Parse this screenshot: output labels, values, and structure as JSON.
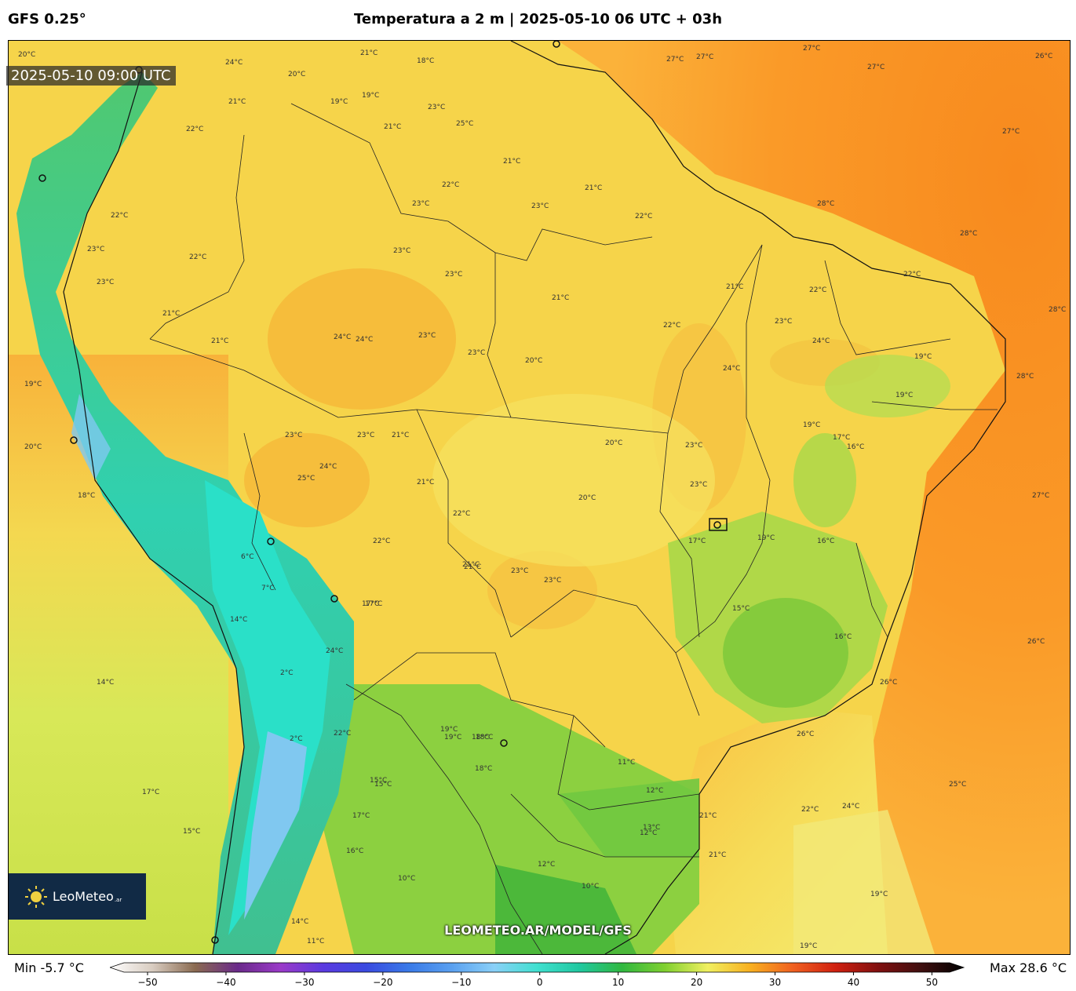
{
  "header": {
    "model": "GFS 0.25°",
    "title": "Temperatura a 2 m | 2025-05-10 06 UTC + 03h"
  },
  "map": {
    "valid_time": "2025-05-10 09:00 UTC",
    "watermark": "LEOMETEO.AR/MODEL/GFS",
    "logo": {
      "text": "LeoMeteo",
      "suffix": ".ar"
    },
    "contour_labels": [
      {
        "text": "27°C"
      },
      {
        "text": "27°C"
      },
      {
        "text": "27°C"
      },
      {
        "text": "26°C"
      },
      {
        "text": "27°C"
      },
      {
        "text": "27°C"
      },
      {
        "text": "28°C"
      },
      {
        "text": "28°C"
      },
      {
        "text": "28°C"
      },
      {
        "text": "28°C"
      },
      {
        "text": "27°C"
      },
      {
        "text": "26°C"
      },
      {
        "text": "26°C"
      },
      {
        "text": "26°C"
      },
      {
        "text": "25°C"
      },
      {
        "text": "24°C"
      },
      {
        "text": "22°C"
      },
      {
        "text": "19°C"
      },
      {
        "text": "19°C"
      },
      {
        "text": "21°C"
      },
      {
        "text": "22°C"
      },
      {
        "text": "23°C"
      },
      {
        "text": "24°C"
      },
      {
        "text": "22°C"
      },
      {
        "text": "21°C"
      },
      {
        "text": "19°C"
      },
      {
        "text": "19°C"
      },
      {
        "text": "17°C"
      },
      {
        "text": "16°C"
      },
      {
        "text": "19°C"
      },
      {
        "text": "16°C"
      },
      {
        "text": "15°C"
      },
      {
        "text": "16°C"
      },
      {
        "text": "17°C"
      },
      {
        "text": "19°C"
      },
      {
        "text": "23°C"
      },
      {
        "text": "24°C"
      },
      {
        "text": "22°C"
      },
      {
        "text": "21°C"
      },
      {
        "text": "22°C"
      },
      {
        "text": "21°C"
      },
      {
        "text": "21°C"
      },
      {
        "text": "23°C"
      },
      {
        "text": "20°C"
      },
      {
        "text": "20°C"
      },
      {
        "text": "20°C"
      },
      {
        "text": "23°C"
      },
      {
        "text": "23°C"
      },
      {
        "text": "21°C"
      },
      {
        "text": "22°C"
      },
      {
        "text": "23°C"
      },
      {
        "text": "23°C"
      },
      {
        "text": "24°C"
      },
      {
        "text": "23°C"
      },
      {
        "text": "23°C"
      },
      {
        "text": "23°C"
      },
      {
        "text": "23°C"
      },
      {
        "text": "21°C"
      },
      {
        "text": "21°C"
      },
      {
        "text": "22°C"
      },
      {
        "text": "22°C"
      },
      {
        "text": "21°C"
      },
      {
        "text": "21°C"
      },
      {
        "text": "22°C"
      },
      {
        "text": "23°C"
      },
      {
        "text": "25°C"
      },
      {
        "text": "24°C"
      },
      {
        "text": "22°C"
      },
      {
        "text": "21°C"
      },
      {
        "text": "19°C"
      },
      {
        "text": "18°C"
      },
      {
        "text": "20°C"
      },
      {
        "text": "19°C"
      },
      {
        "text": "18°C"
      },
      {
        "text": "20°C"
      },
      {
        "text": "23°C"
      },
      {
        "text": "24°C"
      },
      {
        "text": "22°C"
      },
      {
        "text": "23°C"
      },
      {
        "text": "21°C"
      },
      {
        "text": "19°C"
      },
      {
        "text": "19°C"
      },
      {
        "text": "18°C"
      },
      {
        "text": "17°C"
      },
      {
        "text": "15°C"
      },
      {
        "text": "14°C"
      },
      {
        "text": "17°C"
      },
      {
        "text": "15°C"
      },
      {
        "text": "6°C"
      },
      {
        "text": "2°C"
      },
      {
        "text": "2°C"
      },
      {
        "text": "7°C"
      },
      {
        "text": "17°C"
      },
      {
        "text": "19°C"
      },
      {
        "text": "18°C"
      },
      {
        "text": "15°C"
      },
      {
        "text": "17°C"
      },
      {
        "text": "16°C"
      },
      {
        "text": "10°C"
      },
      {
        "text": "14°C"
      },
      {
        "text": "11°C"
      },
      {
        "text": "12°C"
      },
      {
        "text": "12°C"
      },
      {
        "text": "11°C"
      },
      {
        "text": "12°C"
      },
      {
        "text": "13°C"
      },
      {
        "text": "10°C"
      },
      {
        "text": "21°C"
      },
      {
        "text": "24°C"
      },
      {
        "text": "22°C"
      },
      {
        "text": "18°C"
      },
      {
        "text": "14°C"
      },
      {
        "text": "23°C"
      },
      {
        "text": "24°C"
      },
      {
        "text": "21°C"
      },
      {
        "text": "21°C"
      },
      {
        "text": "25°C"
      },
      {
        "text": "23°C"
      },
      {
        "text": "20°C"
      }
    ]
  },
  "colorbar": {
    "min_label": "Min -5.7 °C",
    "max_label": "Max 28.6 °C",
    "tick_labels": [
      "−50",
      "−40",
      "−30",
      "−20",
      "−10",
      "0",
      "10",
      "20",
      "30",
      "40",
      "50"
    ],
    "range": [
      -50,
      50
    ],
    "stops": [
      {
        "value": -50,
        "color": "#ffffff"
      },
      {
        "value": -45,
        "color": "#d8ccc0"
      },
      {
        "value": -40,
        "color": "#8a6a50"
      },
      {
        "value": -35,
        "color": "#6a2a8a"
      },
      {
        "value": -30,
        "color": "#9a3ac8"
      },
      {
        "value": -25,
        "color": "#5a3ae0"
      },
      {
        "value": -20,
        "color": "#3a4ae0"
      },
      {
        "value": -15,
        "color": "#3a7ae8"
      },
      {
        "value": -10,
        "color": "#5aa0f0"
      },
      {
        "value": -5,
        "color": "#8ad0f8"
      },
      {
        "value": 0,
        "color": "#40e0d0"
      },
      {
        "value": 5,
        "color": "#20c8a0"
      },
      {
        "value": 10,
        "color": "#30b840"
      },
      {
        "value": 15,
        "color": "#80d030"
      },
      {
        "value": 20,
        "color": "#f0f060"
      },
      {
        "value": 25,
        "color": "#f8b020"
      },
      {
        "value": 30,
        "color": "#f06020"
      },
      {
        "value": 35,
        "color": "#d02010"
      },
      {
        "value": 40,
        "color": "#801010"
      },
      {
        "value": 45,
        "color": "#401010"
      },
      {
        "value": 50,
        "color": "#000000"
      }
    ]
  }
}
